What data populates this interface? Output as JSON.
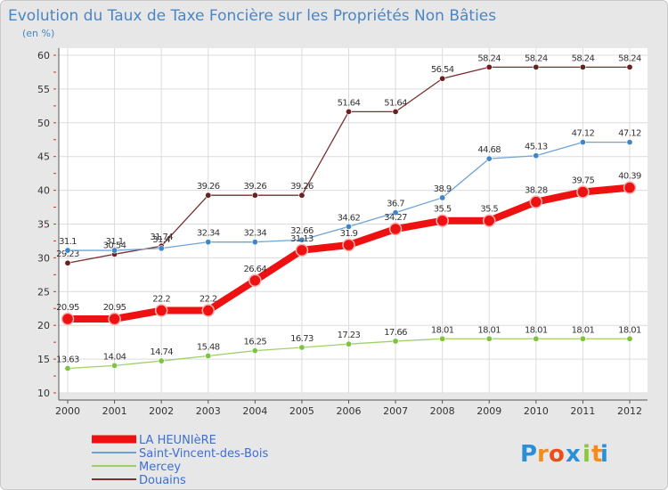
{
  "title": "Evolution du Taux de Taxe Foncière sur les Propriétés Non Bâties",
  "unit_label": "(en %)",
  "logo": {
    "letters": [
      "P",
      "r",
      "o",
      "x",
      "i",
      "t",
      "i"
    ],
    "colors": [
      "#2a8fd6",
      "#f28c1f",
      "#e94e1b",
      "#2a8fd6",
      "#8cc63f",
      "#f28c1f",
      "#2a8fd6"
    ]
  },
  "chart_data": {
    "type": "line",
    "x": [
      "2000",
      "2001",
      "2002",
      "2003",
      "2004",
      "2005",
      "2006",
      "2007",
      "2008",
      "2009",
      "2010",
      "2011",
      "2012"
    ],
    "ylim": [
      10,
      60
    ],
    "yticks": [
      10,
      15,
      20,
      25,
      30,
      35,
      40,
      45,
      50,
      55,
      60
    ],
    "grid": true,
    "legend_position": "bottom-left",
    "series": [
      {
        "name": "Douains",
        "color": "#7b2f2f",
        "point_color": "#6a2020",
        "values": [
          29.23,
          30.54,
          31.74,
          39.26,
          39.26,
          39.26,
          51.64,
          51.64,
          56.54,
          58.24,
          58.24,
          58.24,
          58.24
        ],
        "labels": [
          "29.23",
          "30.54",
          "31.74",
          "39.26",
          "39.26",
          "39.26",
          "51.64",
          "51.64",
          "56.54",
          "58.24",
          "58.24",
          "58.24",
          "58.24"
        ]
      },
      {
        "name": "Saint-Vincent-des-Bois",
        "color": "#6fa3d6",
        "point_color": "#3f86c8",
        "values": [
          31.1,
          31.1,
          31.4,
          32.34,
          32.34,
          32.66,
          34.62,
          36.7,
          38.9,
          44.68,
          45.13,
          47.12,
          47.12
        ],
        "labels": [
          "31.1",
          "31.1",
          "31.4",
          "32.34",
          "32.34",
          "32.66",
          "34.62",
          "36.7",
          "38.9",
          "44.68",
          "45.13",
          "47.12",
          "47.12"
        ]
      },
      {
        "name": "Mercey",
        "color": "#9ed06a",
        "point_color": "#7cc341",
        "values": [
          13.63,
          14.04,
          14.74,
          15.48,
          16.25,
          16.73,
          17.23,
          17.66,
          18.01,
          18.01,
          18.01,
          18.01,
          18.01
        ],
        "labels": [
          "13.63",
          "14.04",
          "14.74",
          "15.48",
          "16.25",
          "16.73",
          "17.23",
          "17.66",
          "18.01",
          "18.01",
          "18.01",
          "18.01",
          "18.01"
        ]
      },
      {
        "name": "LA HEUNIèRE",
        "color": "#ee1111",
        "point_color": "#ee1111",
        "values": [
          20.95,
          20.95,
          22.2,
          22.2,
          26.64,
          31.13,
          31.9,
          34.27,
          35.5,
          35.5,
          38.28,
          39.75,
          40.39
        ],
        "labels": [
          "20.95",
          "20.95",
          "22.2",
          "22.2",
          "26.64",
          "31.13",
          "31.9",
          "34.27",
          "35.5",
          "35.5",
          "38.28",
          "39.75",
          "40.39"
        ]
      }
    ],
    "legend_order": [
      "LA HEUNIèRE",
      "Saint-Vincent-des-Bois",
      "Mercey",
      "Douains"
    ]
  }
}
